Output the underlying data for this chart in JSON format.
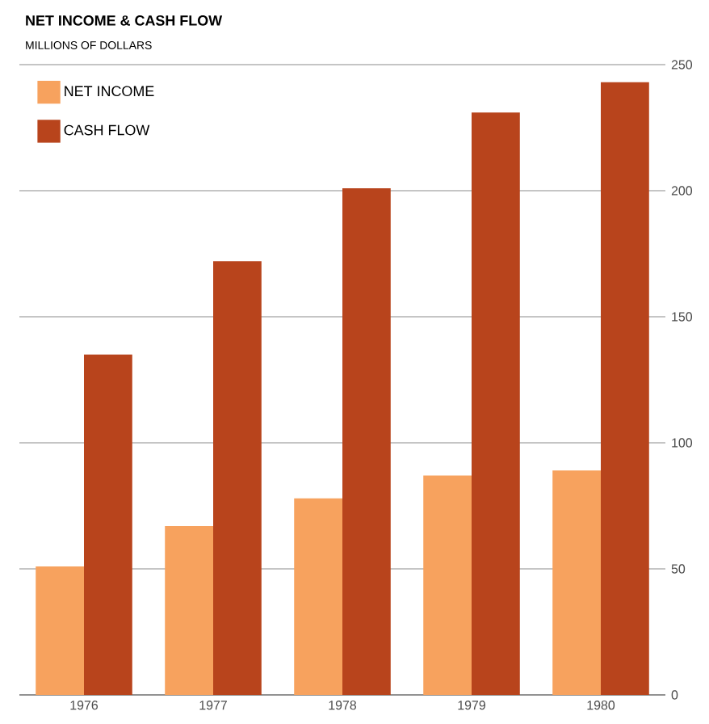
{
  "chart_data": {
    "type": "bar",
    "title": "NET INCOME & CASH FLOW",
    "subtitle": "MILLIONS OF DOLLARS",
    "categories": [
      "1976",
      "1977",
      "1978",
      "1979",
      "1980"
    ],
    "series": [
      {
        "name": "NET INCOME",
        "color": "#f7a25e",
        "values": [
          51,
          67,
          78,
          87,
          89
        ]
      },
      {
        "name": "CASH FLOW",
        "color": "#b8441c",
        "values": [
          135,
          172,
          201,
          231,
          243
        ]
      }
    ],
    "ylim": [
      0,
      250
    ],
    "yticks": [
      0,
      50,
      100,
      150,
      200,
      250
    ],
    "grid": "y",
    "legend": "top left"
  }
}
